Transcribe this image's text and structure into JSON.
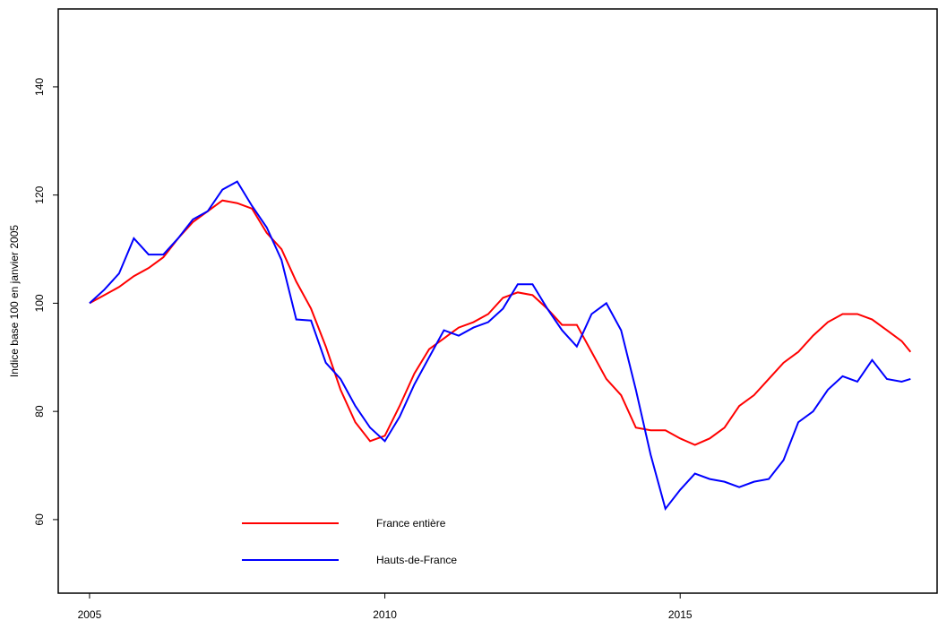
{
  "chart_data": {
    "type": "line",
    "y_label": "Indice base 100 en janvier 2005",
    "x": [
      2005,
      2005.25,
      2005.5,
      2005.75,
      2006,
      2006.25,
      2006.5,
      2006.75,
      2007,
      2007.25,
      2007.5,
      2007.75,
      2008,
      2008.25,
      2008.5,
      2008.75,
      2009,
      2009.25,
      2009.5,
      2009.75,
      2010,
      2010.25,
      2010.5,
      2010.75,
      2011,
      2011.25,
      2011.5,
      2011.75,
      2012,
      2012.25,
      2012.5,
      2012.75,
      2013,
      2013.25,
      2013.5,
      2013.75,
      2014,
      2014.25,
      2014.5,
      2014.75,
      2015,
      2015.25,
      2015.5,
      2015.75,
      2016,
      2016.25,
      2016.5,
      2016.75,
      2017,
      2017.25,
      2017.5,
      2017.75,
      2018,
      2018.25,
      2018.5,
      2018.75,
      2018.9
    ],
    "series": [
      {
        "name": "France entière",
        "color": "#ff0000",
        "values": [
          100,
          101.5,
          103,
          105,
          106.5,
          108.5,
          112,
          115,
          117,
          119,
          118.5,
          117.5,
          113,
          110,
          104,
          99,
          92,
          84,
          78,
          74.5,
          75.5,
          81,
          87,
          91.5,
          93.5,
          95.5,
          96.5,
          98,
          101,
          102,
          101.5,
          99,
          96,
          96,
          91,
          86,
          83,
          77,
          76.5,
          76.5,
          75,
          73.8,
          75,
          77,
          81,
          83,
          86,
          89,
          91,
          94,
          96.5,
          98,
          98,
          97,
          95,
          93,
          91
        ]
      },
      {
        "name": "Hauts-de-France",
        "color": "#0000ff",
        "values": [
          100,
          102.5,
          105.5,
          112,
          109,
          109,
          112,
          115.5,
          117,
          121,
          122.5,
          118,
          114,
          108,
          97,
          96.8,
          89,
          86,
          81,
          77,
          74.5,
          79,
          85,
          90,
          95,
          94,
          95.5,
          96.5,
          99,
          103.5,
          103.5,
          99,
          95,
          92,
          98,
          100,
          95,
          84,
          72,
          62,
          65.5,
          68.5,
          67.5,
          67,
          66,
          67,
          67.5,
          71,
          78,
          80,
          84,
          86.5,
          85.5,
          89.5,
          86,
          85.5,
          86
        ]
      }
    ],
    "xlim": [
      2004.47,
      2019.35
    ],
    "xticks": [
      2005,
      2010,
      2015
    ],
    "ylim": [
      46.4,
      154.4
    ],
    "yticks": [
      60,
      80,
      100,
      120,
      140
    ],
    "legend": "bottom-left",
    "grid": false
  }
}
